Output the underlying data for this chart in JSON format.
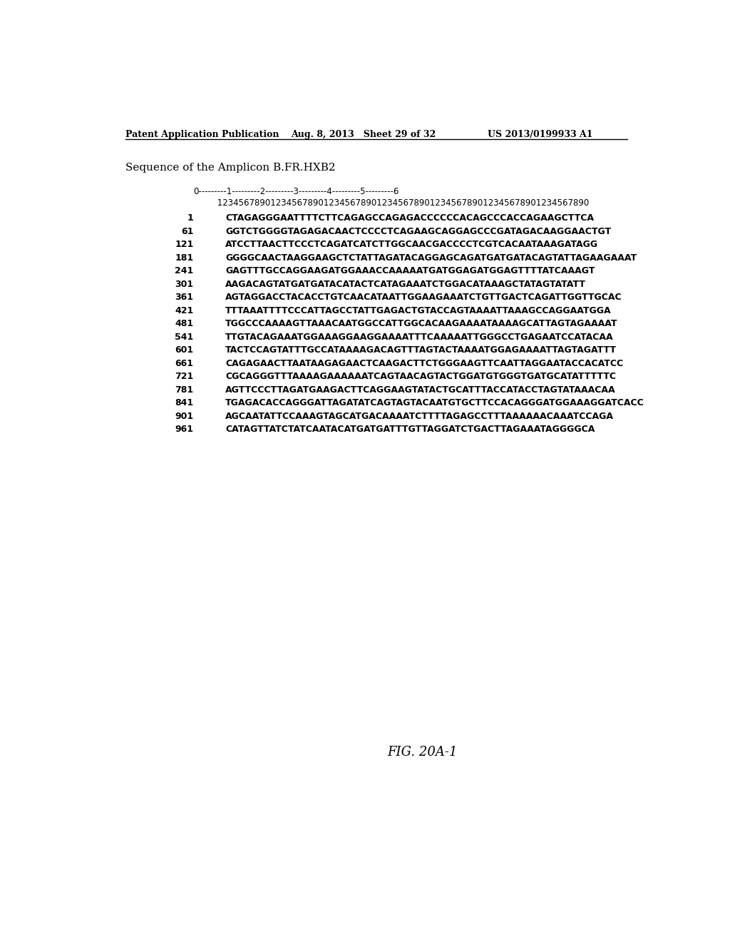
{
  "header_left": "Patent Application Publication",
  "header_mid": "Aug. 8, 2013   Sheet 29 of 32",
  "header_right": "US 2013/0199933 A1",
  "title": "Sequence of the Amplicon B.FR.HXB2",
  "ruler1": "0---------1---------2---------3---------4---------5---------6",
  "ruler2": "         1234567890123456789012345678901234567890123456789012345678901234567890",
  "sequences": [
    {
      "num": "1",
      "seq": "CTAGAGGGAATTTTCTTCAGAGCCAGAGACCCCCCACAGCCCACCAGAAGCTTCA"
    },
    {
      "num": "61",
      "seq": "GGTCTGGGGTAGAGACAACTCCCCTCAGAAGCAGGAGCCCGATAGACAAGGAACTGT"
    },
    {
      "num": "121",
      "seq": "ATCCTTAACTTCCCTCAGATCATCTTGGCAACGACCCCTCGTCACAATAAAGATAGG"
    },
    {
      "num": "181",
      "seq": "GGGGCAACTAAGGAAGCTCTATTAGATACAGGAGCAGATGATGATACAGTATTAGAAGAAAT"
    },
    {
      "num": "241",
      "seq": "GAGTTTGCCAGGAAGATGGAAACCAAAAATGATGGAGATGGAGTTTTATCAAAGT"
    },
    {
      "num": "301",
      "seq": "AAGACAGTATGATGATACATACTCATAGAAATCTGGACATAAAGCTATAGTATATT"
    },
    {
      "num": "361",
      "seq": "AGTAGGACCTACACCTGTCAACATAATTGGAAGAAATCTGTTGACTCAGATTGGTTGCAC"
    },
    {
      "num": "421",
      "seq": "TTTAAATTTTCCCATTAGCCTATTGAGACTGTACCAGTAAAATTAAAGCCAGGAATGGA"
    },
    {
      "num": "481",
      "seq": "TGGCCCAAAAGTTAAACAATGGCCATTGGCACAAGAAAATAAAAGCATTAGTAGAAAAT"
    },
    {
      "num": "541",
      "seq": "TTGTACAGAAATGGAAAGGAAGGAAAATTTCAAAAATTGGGCCTGAGAATCCATACAA"
    },
    {
      "num": "601",
      "seq": "TACTCCAGTATTTGCCATAAAAGACAGTTTAGTACTAAAATGGAGAAAATTAGTAGATTT"
    },
    {
      "num": "661",
      "seq": "CAGAGAACTTAATAAGAGAACTCAAGACTTCTGGGAAGTTCAATTAGGAATACCACATCC"
    },
    {
      "num": "721",
      "seq": "CGCAGGGTTTAAAAGAAAAAATCAGTAACAGTACTGGATGTGGGTGATGCATATTTTTC"
    },
    {
      "num": "781",
      "seq": "AGTTCCCTTAGATGAAGACTTCAGGAAGTATACTGCATTTACCATACCTAGTATAAACAA"
    },
    {
      "num": "841",
      "seq": "TGAGACACCAGGGATTAGATATCAGTAGTACAATGTGCTTCCACAGGGATGGAAAGGATCACC"
    },
    {
      "num": "901",
      "seq": "AGCAATATTCCAAAGTAGCATGACAAAATCTTTTAGAGCCTTTAAAAAACAAATCCAGA"
    },
    {
      "num": "961",
      "seq": "CATAGTTATCTATCAATACATGATGATTTGTTAGGATCTGACTTAGAAATAGGGGCA"
    }
  ],
  "figure_label": "FIG. 20A-1",
  "bg_color": "#ffffff",
  "text_color": "#000000"
}
